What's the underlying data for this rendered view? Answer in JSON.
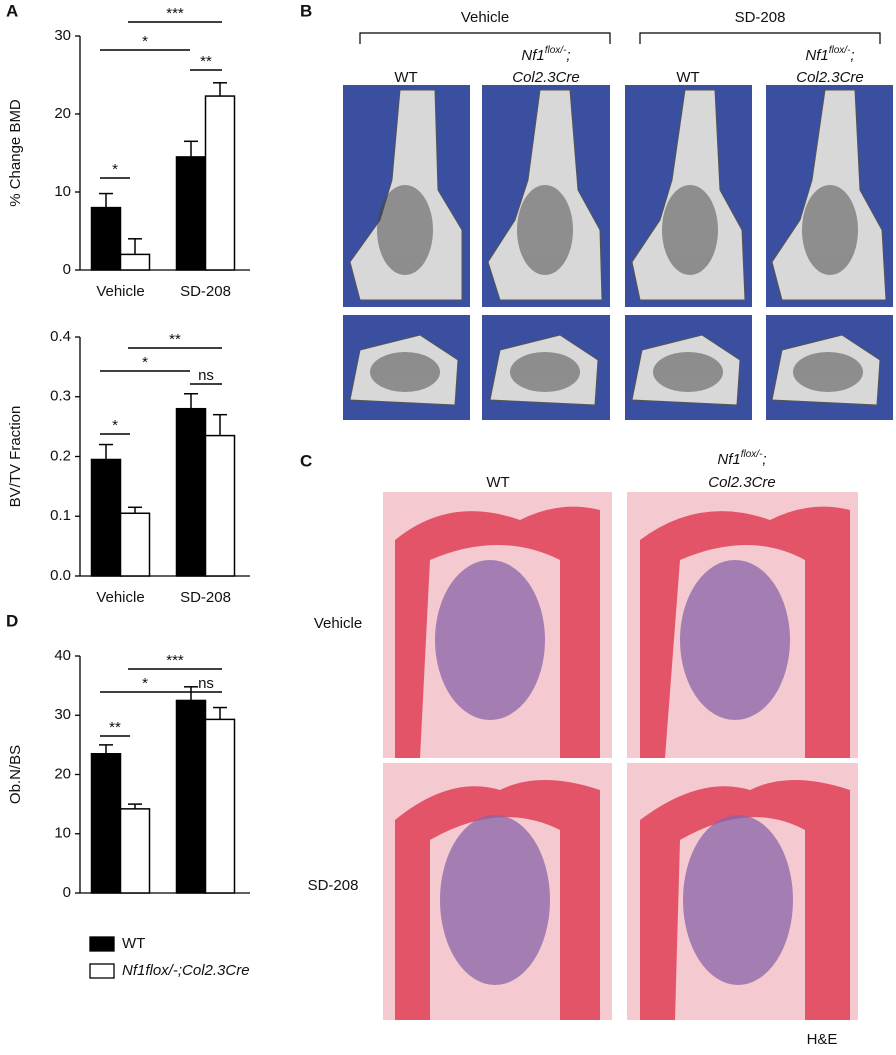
{
  "panel_labels": {
    "a": "A",
    "b": "B",
    "c": "C",
    "d": "D"
  },
  "chart_data": [
    {
      "type": "bar",
      "ylabel": "% Change BMD",
      "categories": [
        "Vehicle",
        "SD-208"
      ],
      "ylim": [
        0,
        30
      ],
      "yticks": [
        0,
        10,
        20,
        30
      ],
      "series": [
        {
          "color": "#000000",
          "values": [
            8,
            14.5
          ],
          "errors": [
            1.8,
            2
          ]
        },
        {
          "color": "#ffffff",
          "values": [
            2,
            22.3
          ],
          "errors": [
            2,
            1.7
          ]
        }
      ],
      "annotations": [
        "***",
        "*",
        "**",
        "*"
      ]
    },
    {
      "type": "bar",
      "ylabel": "BV/TV Fraction",
      "categories": [
        "Vehicle",
        "SD-208"
      ],
      "ylim": [
        0,
        0.4
      ],
      "yticks": [
        {
          "value": 0,
          "label": "0.0"
        },
        0.1,
        0.2,
        0.3,
        0.4
      ],
      "series": [
        {
          "color": "#000000",
          "values": [
            0.195,
            0.28
          ],
          "errors": [
            0.025,
            0.025
          ]
        },
        {
          "color": "#ffffff",
          "values": [
            0.105,
            0.235
          ],
          "errors": [
            0.01,
            0.035
          ]
        }
      ],
      "annotations": [
        "**",
        "*",
        "ns",
        "*"
      ]
    },
    {
      "type": "bar",
      "ylabel": "Ob.N/BS",
      "ylim": [
        0,
        40
      ],
      "yticks": [
        0,
        10,
        20,
        30,
        40
      ],
      "series": [
        {
          "name": "WT",
          "color": "#000000",
          "values": [
            23.5,
            32.5
          ],
          "errors": [
            1.5,
            2.3
          ]
        },
        {
          "name": "Nf1flox/-;Col2.3Cre",
          "color": "#ffffff",
          "values": [
            14.2,
            29.3
          ],
          "errors": [
            0.8,
            2
          ]
        }
      ],
      "annotations": [
        "***",
        "*",
        "ns",
        "**"
      ]
    }
  ],
  "panel_b": {
    "groups": [
      "Vehicle",
      "SD-208"
    ],
    "columns": [
      "WT",
      {
        "gene": "Nf1",
        "allele": "flox/-",
        "separator": ";",
        "driver": "Col2.3Cre"
      },
      "WT",
      {
        "gene": "Nf1",
        "allele": "flox/-",
        "separator": ";",
        "driver": "Col2.3Cre"
      }
    ]
  },
  "panel_c": {
    "columns": [
      "WT",
      {
        "gene": "Nf1",
        "allele": "flox/-",
        "separator": ";",
        "driver": "Col2.3Cre"
      }
    ],
    "rows": [
      "Vehicle",
      "SD-208"
    ],
    "stain": "H&E"
  }
}
